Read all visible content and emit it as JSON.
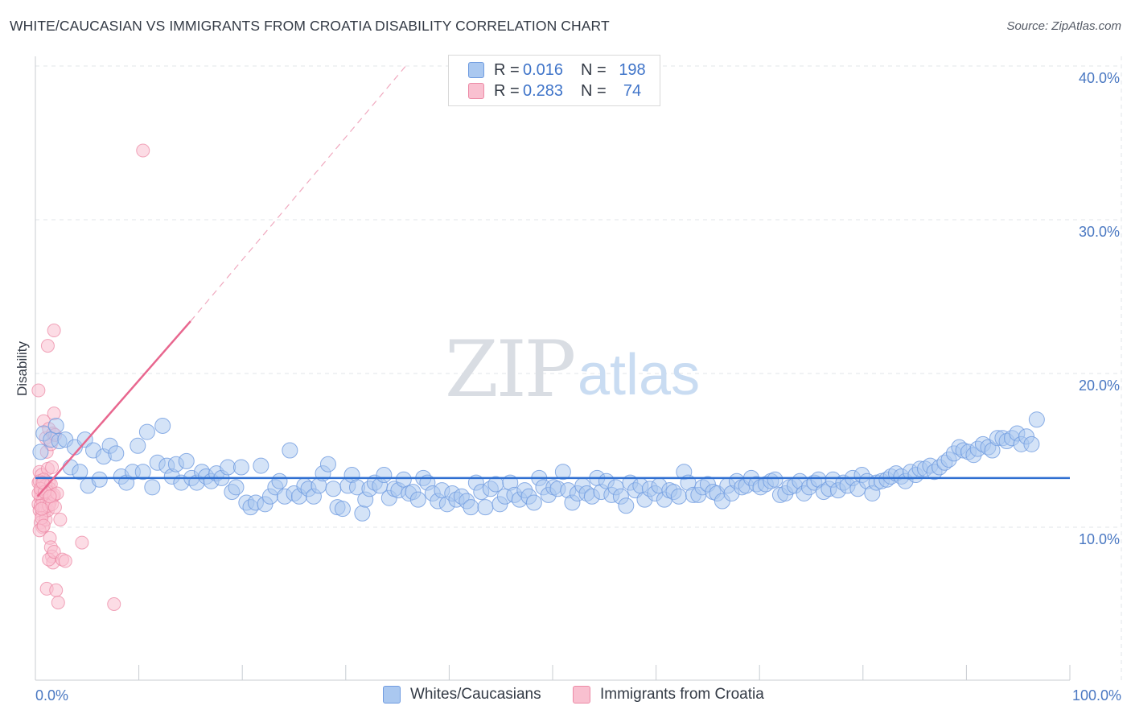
{
  "header": {
    "title": "WHITE/CAUCASIAN VS IMMIGRANTS FROM CROATIA DISABILITY CORRELATION CHART",
    "source": "Source: ZipAtlas.com"
  },
  "watermark": {
    "zip": "ZIP",
    "atlas": "atlas"
  },
  "legend": {
    "rows": [
      {
        "r_label": "R =",
        "r_value": "0.016",
        "n_label": "N =",
        "n_value": "198",
        "color": "#aac8f0",
        "border": "#6f9be0"
      },
      {
        "r_label": "R =",
        "r_value": "0.283",
        "n_label": "N =",
        "n_value": "74",
        "color": "#f9c0d0",
        "border": "#ec8aa6"
      }
    ]
  },
  "bottom_legend": {
    "items": [
      {
        "label": "Whites/Caucasians",
        "color": "#aac8f0",
        "border": "#6f9be0"
      },
      {
        "label": "Immigrants from Croatia",
        "color": "#f9c0d0",
        "border": "#ec8aa6"
      }
    ]
  },
  "chart_data": {
    "type": "scatter",
    "title": "WHITE/CAUCASIAN VS IMMIGRANTS FROM CROATIA DISABILITY CORRELATION CHART",
    "xlabel": "",
    "ylabel": "Disability",
    "xlim": [
      0,
      100
    ],
    "ylim": [
      0,
      41
    ],
    "x_tick_labels": [
      "0.0%",
      "100.0%"
    ],
    "y_ticks": [
      10,
      20,
      30,
      40
    ],
    "y_tick_labels": [
      "10.0%",
      "20.0%",
      "30.0%",
      "40.0%"
    ],
    "colors": {
      "blue_fill": "#aac8f0",
      "blue_stroke": "#6f9be0",
      "pink_fill": "#f9c0d0",
      "pink_stroke": "#ec8aa6",
      "blue_line": "#2f6fd1",
      "pink_line": "#e8678f",
      "tick_label": "#4a78c2"
    },
    "series": [
      {
        "name": "Whites/Caucasians",
        "trend": {
          "x": [
            0,
            100
          ],
          "y": [
            13.2,
            13.2
          ]
        },
        "points": [
          [
            0.5,
            14.9
          ],
          [
            0.8,
            16.1
          ],
          [
            1.5,
            15.7
          ],
          [
            2.0,
            16.6
          ],
          [
            2.3,
            15.6
          ],
          [
            2.9,
            15.7
          ],
          [
            3.4,
            13.9
          ],
          [
            3.8,
            15.2
          ],
          [
            4.3,
            13.6
          ],
          [
            4.8,
            15.7
          ],
          [
            5.1,
            12.7
          ],
          [
            5.6,
            15.0
          ],
          [
            6.2,
            13.1
          ],
          [
            6.6,
            14.6
          ],
          [
            7.2,
            15.3
          ],
          [
            7.8,
            14.8
          ],
          [
            8.3,
            13.3
          ],
          [
            8.8,
            12.9
          ],
          [
            9.4,
            13.6
          ],
          [
            9.9,
            15.3
          ],
          [
            10.4,
            13.6
          ],
          [
            10.8,
            16.2
          ],
          [
            11.3,
            12.6
          ],
          [
            11.8,
            14.2
          ],
          [
            12.3,
            16.6
          ],
          [
            12.7,
            14.0
          ],
          [
            13.2,
            13.3
          ],
          [
            13.6,
            14.1
          ],
          [
            14.1,
            12.9
          ],
          [
            14.6,
            14.3
          ],
          [
            15.1,
            13.2
          ],
          [
            15.6,
            12.9
          ],
          [
            16.1,
            13.6
          ],
          [
            16.5,
            13.3
          ],
          [
            17.0,
            13.0
          ],
          [
            17.5,
            13.5
          ],
          [
            18.0,
            13.2
          ],
          [
            18.6,
            13.9
          ],
          [
            19.0,
            12.3
          ],
          [
            19.4,
            12.6
          ],
          [
            19.9,
            13.9
          ],
          [
            20.4,
            11.6
          ],
          [
            20.8,
            11.3
          ],
          [
            21.3,
            11.6
          ],
          [
            21.8,
            14.0
          ],
          [
            22.2,
            11.5
          ],
          [
            22.7,
            12.0
          ],
          [
            23.2,
            12.6
          ],
          [
            23.6,
            13.0
          ],
          [
            24.1,
            12.0
          ],
          [
            24.6,
            15.0
          ],
          [
            25.0,
            12.2
          ],
          [
            25.5,
            12.0
          ],
          [
            26.0,
            12.7
          ],
          [
            26.4,
            12.5
          ],
          [
            26.9,
            12.0
          ],
          [
            27.4,
            12.7
          ],
          [
            27.8,
            13.5
          ],
          [
            28.3,
            14.1
          ],
          [
            28.8,
            12.5
          ],
          [
            29.2,
            11.3
          ],
          [
            29.7,
            11.2
          ],
          [
            30.2,
            12.7
          ],
          [
            30.6,
            13.4
          ],
          [
            31.1,
            12.6
          ],
          [
            31.6,
            10.9
          ],
          [
            31.9,
            11.8
          ],
          [
            32.3,
            12.5
          ],
          [
            32.8,
            12.9
          ],
          [
            33.3,
            12.7
          ],
          [
            33.7,
            13.4
          ],
          [
            34.2,
            11.9
          ],
          [
            34.7,
            12.5
          ],
          [
            35.1,
            12.4
          ],
          [
            35.6,
            13.1
          ],
          [
            36.1,
            12.2
          ],
          [
            36.5,
            12.3
          ],
          [
            37.0,
            11.8
          ],
          [
            37.5,
            13.2
          ],
          [
            37.9,
            12.9
          ],
          [
            38.4,
            12.2
          ],
          [
            38.9,
            11.7
          ],
          [
            39.3,
            12.4
          ],
          [
            39.8,
            11.5
          ],
          [
            40.3,
            12.2
          ],
          [
            40.7,
            11.8
          ],
          [
            41.2,
            12.0
          ],
          [
            41.7,
            11.7
          ],
          [
            42.1,
            11.3
          ],
          [
            42.6,
            12.9
          ],
          [
            43.1,
            12.3
          ],
          [
            43.5,
            11.3
          ],
          [
            44.0,
            12.5
          ],
          [
            44.5,
            12.8
          ],
          [
            44.9,
            11.5
          ],
          [
            45.4,
            12.0
          ],
          [
            45.9,
            12.9
          ],
          [
            46.3,
            12.1
          ],
          [
            46.8,
            11.8
          ],
          [
            47.3,
            12.4
          ],
          [
            47.7,
            12.0
          ],
          [
            48.2,
            11.6
          ],
          [
            48.7,
            13.2
          ],
          [
            49.1,
            12.6
          ],
          [
            49.6,
            12.1
          ],
          [
            50.1,
            12.6
          ],
          [
            50.5,
            12.5
          ],
          [
            51.0,
            13.6
          ],
          [
            51.5,
            12.4
          ],
          [
            51.9,
            11.6
          ],
          [
            52.4,
            12.2
          ],
          [
            52.9,
            12.7
          ],
          [
            53.3,
            12.2
          ],
          [
            53.8,
            12.0
          ],
          [
            54.3,
            13.2
          ],
          [
            54.7,
            12.3
          ],
          [
            55.2,
            13.0
          ],
          [
            55.7,
            12.1
          ],
          [
            56.1,
            12.6
          ],
          [
            56.6,
            12.0
          ],
          [
            57.1,
            11.4
          ],
          [
            57.5,
            12.9
          ],
          [
            58.0,
            12.4
          ],
          [
            58.5,
            12.7
          ],
          [
            58.9,
            11.8
          ],
          [
            59.4,
            12.5
          ],
          [
            59.9,
            12.2
          ],
          [
            60.3,
            12.7
          ],
          [
            60.8,
            11.8
          ],
          [
            61.3,
            12.4
          ],
          [
            61.7,
            12.3
          ],
          [
            62.2,
            12.0
          ],
          [
            62.7,
            13.6
          ],
          [
            63.1,
            12.9
          ],
          [
            63.6,
            12.1
          ],
          [
            64.1,
            12.1
          ],
          [
            64.5,
            12.6
          ],
          [
            65.0,
            12.8
          ],
          [
            65.5,
            12.3
          ],
          [
            65.9,
            12.2
          ],
          [
            66.4,
            11.7
          ],
          [
            66.9,
            12.7
          ],
          [
            67.3,
            12.2
          ],
          [
            67.8,
            13.0
          ],
          [
            68.3,
            12.6
          ],
          [
            68.7,
            12.7
          ],
          [
            69.2,
            13.2
          ],
          [
            69.7,
            12.8
          ],
          [
            70.1,
            12.6
          ],
          [
            70.6,
            12.8
          ],
          [
            71.1,
            13.0
          ],
          [
            71.5,
            13.1
          ],
          [
            72.0,
            12.1
          ],
          [
            72.5,
            12.2
          ],
          [
            72.9,
            12.6
          ],
          [
            73.4,
            12.7
          ],
          [
            73.9,
            13.0
          ],
          [
            74.3,
            12.2
          ],
          [
            74.8,
            12.6
          ],
          [
            75.3,
            12.9
          ],
          [
            75.7,
            13.1
          ],
          [
            76.2,
            12.3
          ],
          [
            76.7,
            12.5
          ],
          [
            77.1,
            13.1
          ],
          [
            77.6,
            12.4
          ],
          [
            78.1,
            12.9
          ],
          [
            78.5,
            12.7
          ],
          [
            79.0,
            13.2
          ],
          [
            79.5,
            12.5
          ],
          [
            79.9,
            13.4
          ],
          [
            80.4,
            13.0
          ],
          [
            80.9,
            12.2
          ],
          [
            81.3,
            12.9
          ],
          [
            81.8,
            13.0
          ],
          [
            82.3,
            13.1
          ],
          [
            82.7,
            13.3
          ],
          [
            83.2,
            13.5
          ],
          [
            83.7,
            13.3
          ],
          [
            84.1,
            13.0
          ],
          [
            84.6,
            13.6
          ],
          [
            85.1,
            13.4
          ],
          [
            85.5,
            13.8
          ],
          [
            86.0,
            13.8
          ],
          [
            86.5,
            14.0
          ],
          [
            86.9,
            13.6
          ],
          [
            87.4,
            13.9
          ],
          [
            87.9,
            14.2
          ],
          [
            88.3,
            14.4
          ],
          [
            88.8,
            14.8
          ],
          [
            89.3,
            15.2
          ],
          [
            89.7,
            15.0
          ],
          [
            90.2,
            14.9
          ],
          [
            90.7,
            14.7
          ],
          [
            91.1,
            15.1
          ],
          [
            91.6,
            15.4
          ],
          [
            92.1,
            15.2
          ],
          [
            92.5,
            15.0
          ],
          [
            93.0,
            15.8
          ],
          [
            93.5,
            15.8
          ],
          [
            93.9,
            15.6
          ],
          [
            94.4,
            15.8
          ],
          [
            94.9,
            16.1
          ],
          [
            95.3,
            15.4
          ],
          [
            95.8,
            15.9
          ],
          [
            96.3,
            15.4
          ],
          [
            96.8,
            17.0
          ]
        ]
      },
      {
        "name": "Immigrants from Croatia",
        "trend": {
          "x": [
            0.2,
            15.0
          ],
          "y": [
            12.0,
            23.4
          ],
          "dashed_to": {
            "x": 35.8,
            "y": 40.0
          }
        },
        "points": [
          [
            0.3,
            18.9
          ],
          [
            0.4,
            13.6
          ],
          [
            0.3,
            12.9
          ],
          [
            0.5,
            12.3
          ],
          [
            0.6,
            11.8
          ],
          [
            0.3,
            11.5
          ],
          [
            0.4,
            11.1
          ],
          [
            0.6,
            10.8
          ],
          [
            0.5,
            10.3
          ],
          [
            0.7,
            10.0
          ],
          [
            0.4,
            9.8
          ],
          [
            0.6,
            13.4
          ],
          [
            0.8,
            12.6
          ],
          [
            0.9,
            12.0
          ],
          [
            0.7,
            11.4
          ],
          [
            0.9,
            11.0
          ],
          [
            1.0,
            10.5
          ],
          [
            0.8,
            16.9
          ],
          [
            1.0,
            15.8
          ],
          [
            1.1,
            14.9
          ],
          [
            1.2,
            13.8
          ],
          [
            1.3,
            12.9
          ],
          [
            1.1,
            12.4
          ],
          [
            1.4,
            11.6
          ],
          [
            1.2,
            11.1
          ],
          [
            1.3,
            16.4
          ],
          [
            1.5,
            15.4
          ],
          [
            1.6,
            13.9
          ],
          [
            1.4,
            12.5
          ],
          [
            1.7,
            12.0
          ],
          [
            0.5,
            11.9
          ],
          [
            0.6,
            12.6
          ],
          [
            0.4,
            13.0
          ],
          [
            0.7,
            11.7
          ],
          [
            0.8,
            13.1
          ],
          [
            0.9,
            11.3
          ],
          [
            1.0,
            12.7
          ],
          [
            1.1,
            11.7
          ],
          [
            0.3,
            12.2
          ],
          [
            0.5,
            11.4
          ],
          [
            0.6,
            10.6
          ],
          [
            0.8,
            10.1
          ],
          [
            1.2,
            12.3
          ],
          [
            1.3,
            11.4
          ],
          [
            1.5,
            12.8
          ],
          [
            1.6,
            11.5
          ],
          [
            1.8,
            12.1
          ],
          [
            1.9,
            11.3
          ],
          [
            2.1,
            12.2
          ],
          [
            1.7,
            16.1
          ],
          [
            1.9,
            16.0
          ],
          [
            1.8,
            17.4
          ],
          [
            1.2,
            21.8
          ],
          [
            1.8,
            22.8
          ],
          [
            2.4,
            10.5
          ],
          [
            4.5,
            9.0
          ],
          [
            1.4,
            9.3
          ],
          [
            1.5,
            8.7
          ],
          [
            1.6,
            8.1
          ],
          [
            1.7,
            7.7
          ],
          [
            1.3,
            7.9
          ],
          [
            1.8,
            8.4
          ],
          [
            2.6,
            7.9
          ],
          [
            2.9,
            7.8
          ],
          [
            1.1,
            6.0
          ],
          [
            2.0,
            5.9
          ],
          [
            2.2,
            5.1
          ],
          [
            7.6,
            5.0
          ],
          [
            10.4,
            34.5
          ],
          [
            0.5,
            12.5
          ],
          [
            0.9,
            12.3
          ],
          [
            0.7,
            12.9
          ],
          [
            0.6,
            11.2
          ],
          [
            1.4,
            12.0
          ]
        ]
      }
    ]
  }
}
